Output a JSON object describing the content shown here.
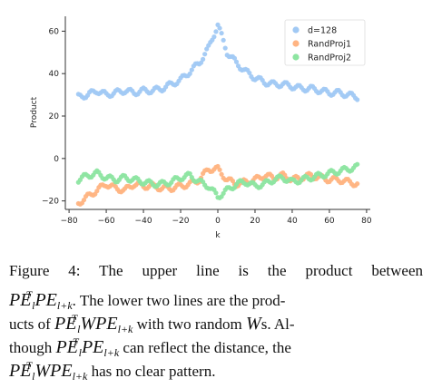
{
  "chart_data": {
    "type": "scatter",
    "title": "",
    "xlabel": "k",
    "ylabel": "Product",
    "xlim": [
      -82,
      82
    ],
    "ylim": [
      -24,
      67
    ],
    "xticks": [
      -80,
      -60,
      -40,
      -20,
      0,
      20,
      40,
      60,
      80
    ],
    "yticks": [
      -20,
      0,
      20,
      40,
      60
    ],
    "xtick_labels": [
      "−80",
      "−60",
      "−40",
      "−20",
      "0",
      "20",
      "40",
      "60",
      "80"
    ],
    "ytick_labels": [
      "−20",
      "0",
      "20",
      "40",
      "60"
    ],
    "grid": false,
    "legend_position": "top-right",
    "x": [
      -75,
      -70,
      -65,
      -60,
      -55,
      -50,
      -45,
      -40,
      -35,
      -30,
      -25,
      -20,
      -15,
      -10,
      -5,
      0,
      5,
      10,
      15,
      20,
      25,
      30,
      35,
      40,
      45,
      50,
      55,
      60,
      65,
      70,
      75
    ],
    "series": [
      {
        "name": "d=128",
        "color": "#a1c9f4",
        "values": [
          29,
          30,
          32,
          30,
          31,
          32,
          31,
          32,
          32,
          33,
          35,
          37,
          41,
          45,
          52,
          63,
          50,
          45,
          41,
          38,
          36,
          35,
          35,
          34,
          33,
          33,
          32,
          31,
          31,
          30,
          29
        ]
      },
      {
        "name": "RandProj1",
        "color": "#ffb482",
        "values": [
          -21,
          -18,
          -15,
          -12,
          -14,
          -15,
          -12,
          -13,
          -13,
          -14,
          -14,
          -13,
          -12,
          -10,
          -5,
          -5,
          -10,
          -12,
          -11,
          -10,
          -8,
          -9,
          -8,
          -10,
          -9,
          -8,
          -9,
          -10,
          -10,
          -11,
          -12
        ]
      },
      {
        "name": "RandProj2",
        "color": "#8de5a1",
        "values": [
          -10,
          -8,
          -7,
          -9,
          -10,
          -9,
          -10,
          -11,
          -12,
          -12,
          -11,
          -9,
          -8,
          -11,
          -13,
          -18,
          -15,
          -12,
          -11,
          -13,
          -12,
          -10,
          -9,
          -11,
          -10,
          -9,
          -8,
          -7,
          -6,
          -5,
          -4
        ]
      }
    ]
  },
  "caption": {
    "line1_a": "Figure 4:  The upper line is the product between",
    "line2_expr": "PE",
    "line2_sup": "T",
    "line2_sub1": "l",
    "line2_expr2": "PE",
    "line2_sub2": "l+k",
    "line2_text": ".   The lower two lines are the prod-",
    "line3_a": "ucts of",
    "line3_expr1": "PE",
    "line3_sup": "T",
    "line3_sub1": "l",
    "line3_expr2": "WPE",
    "line3_sub2": "l+k",
    "line3_b": "with two random",
    "line3_w": "W",
    "line3_c": "s.   Al-",
    "line4_a": "though",
    "line4_expr1": "PE",
    "line4_sup": "T",
    "line4_sub1": "l",
    "line4_expr2": "PE",
    "line4_sub2": "l+k",
    "line4_b": "can reflect the distance, the",
    "line5_expr1": "PE",
    "line5_sup": "T",
    "line5_sub1": "l",
    "line5_expr2": "WPE",
    "line5_sub2": "l+k",
    "line5_b": "has no clear pattern."
  }
}
